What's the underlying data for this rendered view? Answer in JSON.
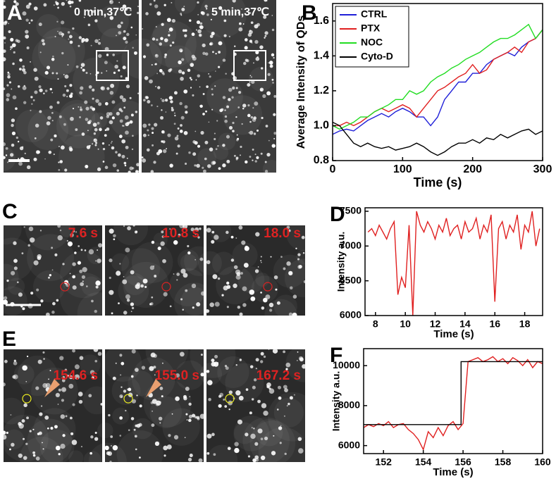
{
  "panels": {
    "A": {
      "label": "A",
      "images": [
        "0 min,37℃",
        "5 min,37℃"
      ]
    },
    "C": {
      "label": "C",
      "images": [
        "7.6 s",
        "10.8 s",
        "18.0 s"
      ]
    },
    "E": {
      "label": "E",
      "images": [
        "154.6 s",
        "155.0 s",
        "167.2 s"
      ]
    }
  },
  "chart_data": [
    {
      "type": "line",
      "panel_label": "B",
      "x_label": "Time (s)",
      "y_label": "Average Intensity of QDs",
      "x": [
        0,
        10,
        20,
        30,
        40,
        50,
        60,
        70,
        80,
        90,
        100,
        110,
        120,
        130,
        140,
        150,
        160,
        170,
        180,
        190,
        200,
        210,
        220,
        230,
        240,
        250,
        260,
        270,
        280,
        290,
        300
      ],
      "series": [
        {
          "name": "CTRL",
          "color": "#1f1fd8",
          "values": [
            0.95,
            0.97,
            0.98,
            0.97,
            1.0,
            1.03,
            1.05,
            1.07,
            1.05,
            1.08,
            1.1,
            1.08,
            1.05,
            1.05,
            1.0,
            1.05,
            1.15,
            1.2,
            1.25,
            1.25,
            1.3,
            1.3,
            1.35,
            1.38,
            1.4,
            1.42,
            1.4,
            1.45,
            1.48,
            1.5,
            1.55
          ]
        },
        {
          "name": "PTX",
          "color": "#e02020",
          "values": [
            1.0,
            1.0,
            1.02,
            1.0,
            1.02,
            1.05,
            1.08,
            1.1,
            1.08,
            1.1,
            1.12,
            1.1,
            1.05,
            1.1,
            1.15,
            1.2,
            1.22,
            1.25,
            1.28,
            1.3,
            1.35,
            1.3,
            1.32,
            1.38,
            1.4,
            1.42,
            1.45,
            1.42,
            1.48,
            1.5,
            1.55
          ]
        },
        {
          "name": "NOC",
          "color": "#22dd22",
          "values": [
            1.0,
            0.98,
            1.0,
            1.02,
            1.05,
            1.05,
            1.08,
            1.1,
            1.12,
            1.15,
            1.15,
            1.2,
            1.18,
            1.2,
            1.25,
            1.28,
            1.3,
            1.33,
            1.35,
            1.38,
            1.4,
            1.42,
            1.45,
            1.48,
            1.5,
            1.5,
            1.52,
            1.55,
            1.58,
            1.5,
            1.55
          ]
        },
        {
          "name": "Cyto-D",
          "color": "#000000",
          "values": [
            1.02,
            1.0,
            0.95,
            0.9,
            0.88,
            0.9,
            0.88,
            0.87,
            0.88,
            0.86,
            0.87,
            0.88,
            0.9,
            0.88,
            0.85,
            0.83,
            0.85,
            0.88,
            0.9,
            0.9,
            0.92,
            0.9,
            0.93,
            0.92,
            0.95,
            0.93,
            0.95,
            0.97,
            0.98,
            0.95,
            0.97
          ]
        }
      ],
      "xlim": [
        0,
        300
      ],
      "xticks": [
        0,
        100,
        200,
        300
      ],
      "ylim": [
        0.8,
        1.7
      ],
      "yticks": [
        0.8,
        {
          "value": 1,
          "label": "1.0"
        },
        1.2,
        1.4,
        1.6
      ],
      "legend": "upper left"
    },
    {
      "type": "line",
      "panel_label": "D",
      "x_label": "Time (s)",
      "y_label": "Intensity a.u.",
      "x": [
        7.5,
        7.75,
        8,
        8.25,
        8.5,
        8.75,
        9,
        9.25,
        9.5,
        9.75,
        10,
        10.25,
        10.5,
        10.75,
        11,
        11.25,
        11.5,
        11.75,
        12,
        12.25,
        12.5,
        12.75,
        13,
        13.25,
        13.5,
        13.75,
        14,
        14.25,
        14.5,
        14.75,
        15,
        15.25,
        15.5,
        15.75,
        16,
        16.25,
        16.5,
        16.75,
        17,
        17.25,
        17.5,
        17.75,
        18,
        18.25,
        18.5,
        18.75,
        19
      ],
      "series": [
        {
          "color": "#e02020",
          "values": [
            7200,
            7250,
            7150,
            7300,
            7200,
            7100,
            7250,
            7350,
            6300,
            6550,
            6400,
            7300,
            6000,
            7500,
            7300,
            7200,
            7350,
            7250,
            7100,
            7300,
            7200,
            7400,
            7150,
            7250,
            7300,
            7100,
            7350,
            7200,
            7250,
            7400,
            7100,
            7300,
            7200,
            7450,
            6200,
            7250,
            7350,
            7100,
            7300,
            7200,
            7450,
            6950,
            7300,
            7200,
            7500,
            7000,
            7250
          ]
        }
      ],
      "xlim": [
        7.3,
        19.2
      ],
      "xticks": [
        8,
        10,
        12,
        14,
        16,
        18
      ],
      "ylim": [
        6000,
        7550
      ],
      "yticks": [
        6000,
        6500,
        7000,
        7500
      ]
    },
    {
      "type": "line",
      "panel_label": "F",
      "x_label": "Time (s)",
      "y_label": "Intensity a.u.",
      "x": [
        151,
        151.25,
        151.5,
        151.75,
        152,
        152.25,
        152.5,
        152.75,
        153,
        153.25,
        153.5,
        153.75,
        154,
        154.25,
        154.5,
        154.75,
        155,
        155.25,
        155.5,
        155.75,
        156,
        156.25,
        156.5,
        156.75,
        157,
        157.25,
        157.5,
        157.75,
        158,
        158.25,
        158.5,
        158.75,
        159,
        159.25,
        159.5,
        159.75,
        160
      ],
      "series": [
        {
          "color": "#e02020",
          "values": [
            6900,
            7050,
            6950,
            7100,
            7000,
            7200,
            6900,
            7050,
            7100,
            6800,
            6600,
            6300,
            5800,
            6700,
            6400,
            6900,
            6500,
            7000,
            7200,
            6800,
            7100,
            10200,
            10300,
            10400,
            10200,
            10300,
            10450,
            10200,
            10350,
            10100,
            10400,
            10250,
            10000,
            10300,
            9900,
            10200,
            10100
          ]
        },
        {
          "color": "#000000",
          "x": [
            151,
            155.9,
            155.9,
            160
          ],
          "values": [
            7050,
            7050,
            10200,
            10200
          ]
        }
      ],
      "xlim": [
        151,
        160
      ],
      "xticks": [
        152,
        154,
        156,
        158,
        160
      ],
      "ylim": [
        5600,
        10850
      ],
      "yticks": [
        6000,
        8000,
        10000
      ]
    }
  ]
}
